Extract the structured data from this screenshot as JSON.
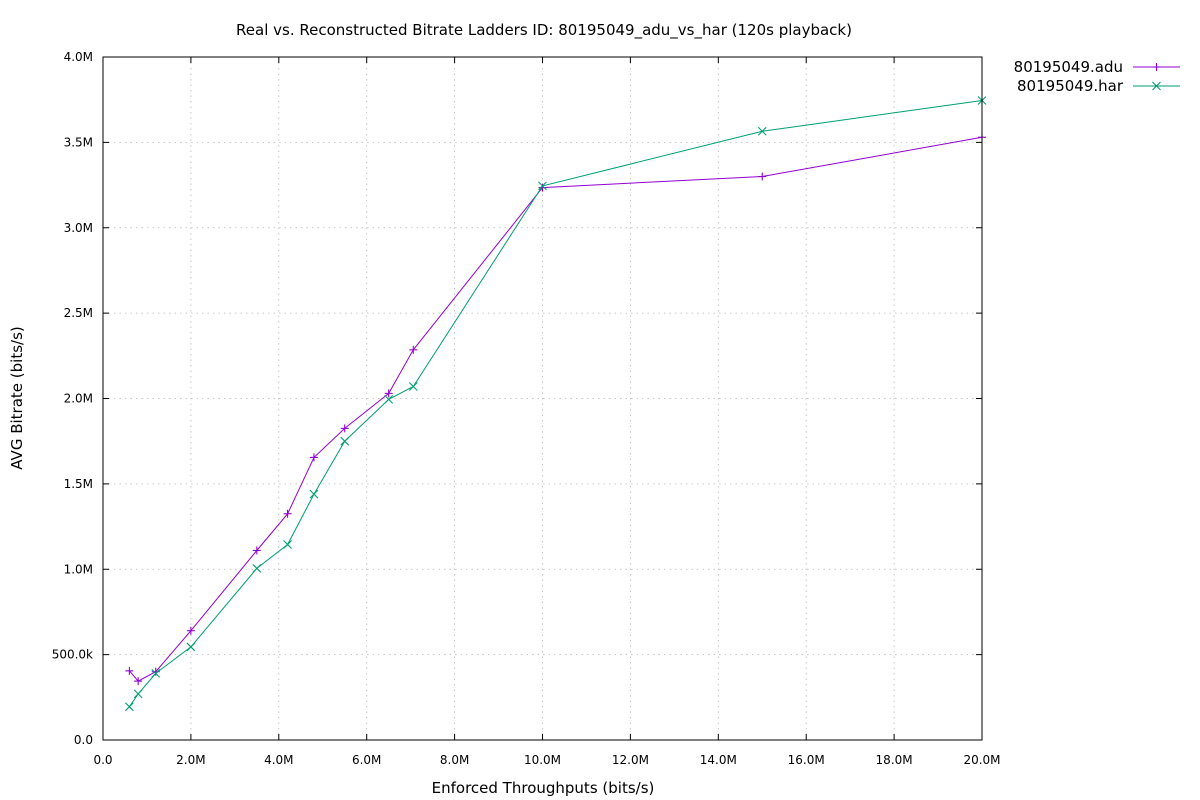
{
  "chart_data": {
    "type": "line",
    "title": "Real vs. Reconstructed Bitrate Ladders ID: 80195049_adu_vs_har (120s playback)",
    "xlabel": "Enforced Throughputs (bits/s)",
    "ylabel": "AVG Bitrate (bits/s)",
    "xlim": [
      0,
      20000000
    ],
    "ylim": [
      0,
      4000000
    ],
    "x_ticks": [
      0,
      2000000,
      4000000,
      6000000,
      8000000,
      10000000,
      12000000,
      14000000,
      16000000,
      18000000,
      20000000
    ],
    "x_tick_labels": [
      "0.0",
      "2.0M",
      "4.0M",
      "6.0M",
      "8.0M",
      "10.0M",
      "12.0M",
      "14.0M",
      "16.0M",
      "18.0M",
      "20.0M"
    ],
    "y_ticks": [
      0,
      500000,
      1000000,
      1500000,
      2000000,
      2500000,
      3000000,
      3500000,
      4000000
    ],
    "y_tick_labels": [
      "0.0",
      "500.0k",
      "1.0M",
      "1.5M",
      "2.0M",
      "2.5M",
      "3.0M",
      "3.5M",
      "4.0M"
    ],
    "grid": true,
    "legend_position": "top-right, outside plot",
    "series": [
      {
        "name": "80195049.adu",
        "color": "#9400d3",
        "marker": "plus",
        "x": [
          600000,
          800000,
          1200000,
          2000000,
          3500000,
          4200000,
          4800000,
          5500000,
          6500000,
          7060000,
          10000000,
          15000000,
          20000000
        ],
        "y": [
          405000,
          345000,
          400000,
          640000,
          1110000,
          1325000,
          1655000,
          1825000,
          2030000,
          2285000,
          3235000,
          3300000,
          3530000
        ]
      },
      {
        "name": "80195049.har",
        "color": "#009e73",
        "marker": "cross",
        "x": [
          600000,
          800000,
          1200000,
          2000000,
          3500000,
          4200000,
          4800000,
          5500000,
          6500000,
          7060000,
          10000000,
          15000000,
          20000000
        ],
        "y": [
          195000,
          270000,
          390000,
          545000,
          1005000,
          1145000,
          1440000,
          1750000,
          1995000,
          2070000,
          3245000,
          3565000,
          3745000
        ]
      }
    ]
  }
}
